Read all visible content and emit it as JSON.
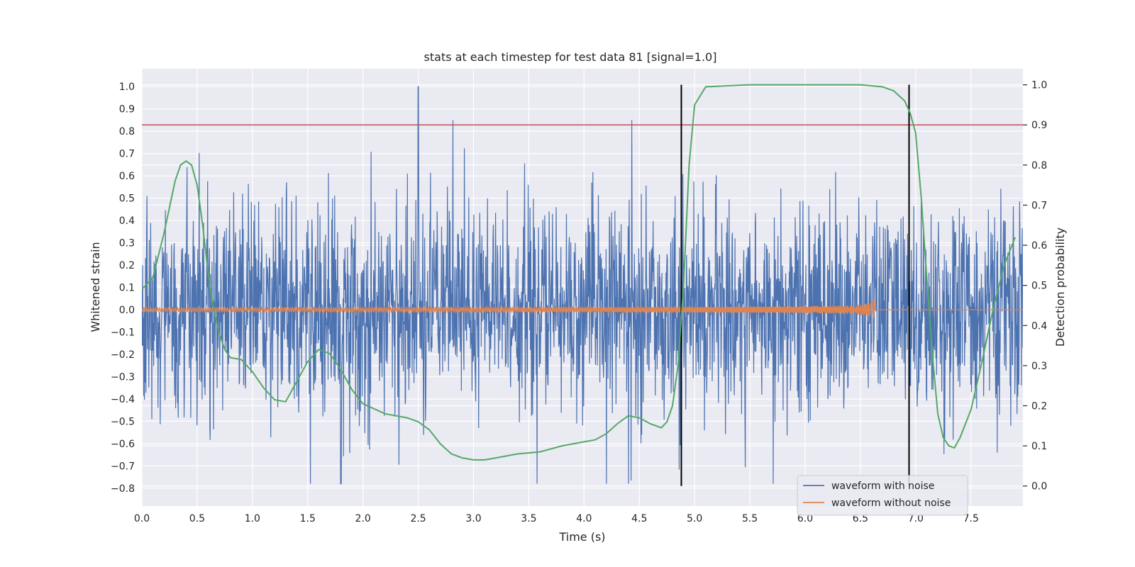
{
  "chart_data": {
    "type": "line",
    "title": "stats at each timestep for test data 81 [signal=1.0]",
    "xlabel": "Time (s)",
    "ylabel": "Whitened strain",
    "y2label": "Detection probability",
    "xlim": [
      0.0,
      7.97
    ],
    "ylim": [
      -0.88,
      1.08
    ],
    "y2lim": [
      -0.05,
      1.04
    ],
    "xticks": [
      0.0,
      0.5,
      1.0,
      1.5,
      2.0,
      2.5,
      3.0,
      3.5,
      4.0,
      4.5,
      5.0,
      5.5,
      6.0,
      6.5,
      7.0,
      7.5
    ],
    "xtick_labels": [
      "0.0",
      "0.5",
      "1.0",
      "1.5",
      "2.0",
      "2.5",
      "3.0",
      "3.5",
      "4.0",
      "4.5",
      "5.0",
      "5.5",
      "6.0",
      "6.5",
      "7.0",
      "7.5"
    ],
    "yticks": [
      1.0,
      0.9,
      0.8,
      0.7,
      0.6,
      0.5,
      0.4,
      0.3,
      0.2,
      0.1,
      0.0,
      -0.1,
      -0.2,
      -0.3,
      -0.4,
      -0.5,
      -0.6,
      -0.7,
      -0.8
    ],
    "ytick_labels": [
      "1.0",
      "0.9",
      "0.8",
      "0.7",
      "0.6",
      "0.5",
      "0.4",
      "0.3",
      "0.2",
      "0.1",
      "0.0",
      "−0.1",
      "−0.2",
      "−0.3",
      "−0.4",
      "−0.5",
      "−0.6",
      "−0.7",
      "−0.8"
    ],
    "y2ticks": [
      1.0,
      0.9,
      0.8,
      0.7,
      0.6,
      0.5,
      0.4,
      0.3,
      0.2,
      0.1,
      0.0
    ],
    "y2tick_labels": [
      "1.0",
      "0.9",
      "0.8",
      "0.7",
      "0.6",
      "0.5",
      "0.4",
      "0.3",
      "0.2",
      "0.1",
      "0.0"
    ],
    "grid": true,
    "legend_position": "bottom-right",
    "series": [
      {
        "name": "waveform with noise",
        "axis": "left",
        "color": "#4c72b0",
        "description_values": "noisy strain, envelope approx ±0.5, peak 1.0 at t=2.5, min -0.78 at t=1.8"
      },
      {
        "name": "waveform without noise",
        "axis": "left",
        "color": "#dd8452",
        "chirp_end_time": 6.63,
        "chirp_peak_amplitude": 0.1
      },
      {
        "axis": "right",
        "color": "#55a868",
        "x": [
          0.0,
          0.1,
          0.2,
          0.3,
          0.35,
          0.4,
          0.45,
          0.5,
          0.55,
          0.6,
          0.65,
          0.7,
          0.75,
          0.8,
          0.9,
          1.0,
          1.1,
          1.2,
          1.3,
          1.4,
          1.5,
          1.6,
          1.7,
          1.8,
          1.9,
          2.0,
          2.2,
          2.4,
          2.5,
          2.6,
          2.7,
          2.8,
          2.9,
          3.0,
          3.1,
          3.2,
          3.4,
          3.6,
          3.8,
          4.0,
          4.1,
          4.2,
          4.3,
          4.4,
          4.5,
          4.6,
          4.7,
          4.75,
          4.8,
          4.85,
          4.9,
          4.95,
          5.0,
          5.1,
          5.5,
          6.0,
          6.5,
          6.7,
          6.8,
          6.9,
          6.95,
          7.0,
          7.05,
          7.1,
          7.15,
          7.2,
          7.25,
          7.3,
          7.35,
          7.4,
          7.5,
          7.6,
          7.7,
          7.8,
          7.9
        ],
        "values": [
          0.49,
          0.52,
          0.63,
          0.76,
          0.8,
          0.81,
          0.8,
          0.75,
          0.65,
          0.53,
          0.44,
          0.38,
          0.34,
          0.32,
          0.315,
          0.285,
          0.245,
          0.215,
          0.21,
          0.26,
          0.31,
          0.34,
          0.33,
          0.29,
          0.24,
          0.205,
          0.18,
          0.17,
          0.16,
          0.14,
          0.105,
          0.08,
          0.07,
          0.065,
          0.065,
          0.07,
          0.08,
          0.085,
          0.1,
          0.11,
          0.115,
          0.13,
          0.155,
          0.175,
          0.17,
          0.155,
          0.145,
          0.16,
          0.2,
          0.3,
          0.5,
          0.8,
          0.95,
          0.995,
          1.0,
          1.0,
          1.0,
          0.995,
          0.985,
          0.96,
          0.93,
          0.88,
          0.72,
          0.52,
          0.33,
          0.18,
          0.12,
          0.1,
          0.095,
          0.12,
          0.19,
          0.31,
          0.44,
          0.55,
          0.62
        ]
      }
    ],
    "threshold_line": {
      "axis": "right",
      "value": 0.9,
      "color": "#c44e52"
    },
    "vertical_markers": [
      {
        "x": 4.88,
        "color": "#000000"
      },
      {
        "x": 6.94,
        "color": "#000000"
      }
    ]
  }
}
